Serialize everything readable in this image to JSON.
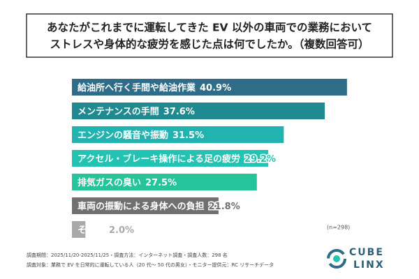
{
  "chart_data": {
    "type": "hbar",
    "title": [
      "あなたがこれまでに運転してきた EV 以外の車両での業務において",
      "ストレスや身体的な疲労を感じた点は何でしたか。（複数回答可）"
    ],
    "categories": [
      "給油所へ行く手間や給油作業",
      "メンテナンスの手間",
      "エンジンの騒音や振動",
      "アクセル・ブレーキ操作による足の疲労",
      "排気ガスの臭い",
      "車両の振動による身体への負担",
      "その他"
    ],
    "values": [
      40.9,
      37.6,
      31.5,
      29.2,
      27.5,
      21.8,
      2.0
    ],
    "value_labels": [
      "40.9%",
      "37.6%",
      "31.5%",
      "29.2%",
      "27.5%",
      "21.8%",
      "2.0%"
    ],
    "colors": [
      "#2e6c88",
      "#1f8a8f",
      "#21b3b0",
      "#22c3b2",
      "#26c49b",
      "#707070",
      "#a9a9a9"
    ],
    "sample_note": "(n=298)",
    "footnotes": [
      "調査期間：2025/11/20-2025/11/25・調査方法：インターネット調査・調査人数：298 名",
      "調査対象：業務で EV を日常的に運転している人（20 代〜 50 代の男女）・モニター提供元：RC リサーチデータ"
    ],
    "logo": [
      "CUBE",
      "LINX"
    ]
  }
}
